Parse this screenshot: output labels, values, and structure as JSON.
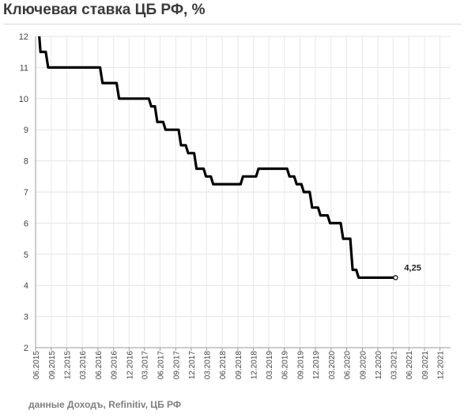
{
  "header": {
    "title": "Ключевая ставка ЦБ РФ, %"
  },
  "footer": {
    "source": "данные Доходъ, Refinitiv, ЦБ РФ"
  },
  "chart_data": {
    "type": "line",
    "title": "Ключевая ставка ЦБ РФ, %",
    "xlabel": "",
    "ylabel": "",
    "ylim": [
      2,
      12
    ],
    "yticks": [
      2,
      3,
      4,
      5,
      6,
      7,
      8,
      9,
      10,
      11,
      12
    ],
    "xticks": [
      "06.2015",
      "09.2015",
      "12.2015",
      "03.2016",
      "06.2016",
      "09.2016",
      "12.2016",
      "03.2017",
      "06.2017",
      "09.2017",
      "12.2017",
      "03.2018",
      "06.2018",
      "09.2018",
      "12.2018",
      "03.2019",
      "06.2019",
      "09.2019",
      "12.2019",
      "03.2020",
      "06.2020",
      "09.2020",
      "12.2020",
      "03.2021",
      "06.2021",
      "09.2021",
      "12.2021"
    ],
    "grid": true,
    "line_color": "#000000",
    "series": [
      {
        "x": [
          "2015-06-01",
          "2015-06-16",
          "2015-07-31",
          "2016-06-14",
          "2016-09-19",
          "2017-03-27",
          "2017-05-02",
          "2017-06-19",
          "2017-09-18",
          "2017-10-30",
          "2017-12-18",
          "2018-02-12",
          "2018-03-26",
          "2018-09-17",
          "2018-12-17",
          "2019-06-17",
          "2019-07-29",
          "2019-09-09",
          "2019-10-28",
          "2019-12-16",
          "2020-02-10",
          "2020-04-27",
          "2020-06-22",
          "2020-07-27",
          "2021-03-15"
        ],
        "y": [
          12.5,
          11.5,
          11,
          10.5,
          10,
          9.75,
          9.25,
          9,
          8.5,
          8.25,
          7.75,
          7.5,
          7.25,
          7.5,
          7.75,
          7.5,
          7.25,
          7,
          6.5,
          6.25,
          6,
          5.5,
          4.5,
          4.25,
          4.25
        ]
      }
    ],
    "annotations": [
      {
        "text": "4,25",
        "x": "2021-03-15",
        "y": 4.25
      }
    ]
  }
}
